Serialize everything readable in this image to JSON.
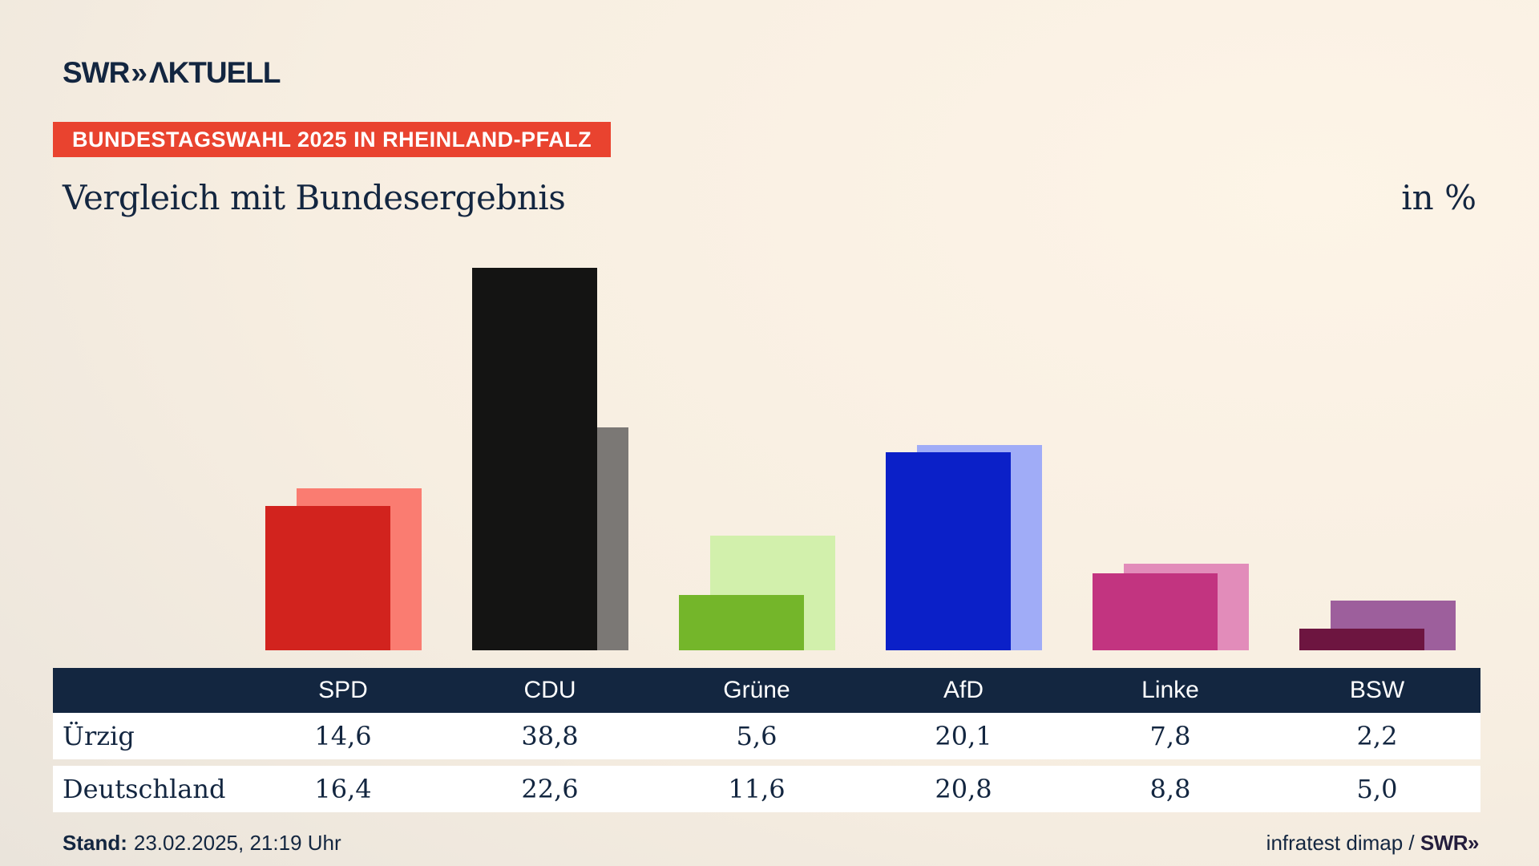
{
  "brand": {
    "logo_main": "SWR",
    "logo_chevrons": "»",
    "logo_suffix": "ΛKTUELL"
  },
  "badge": {
    "text": "BUNDESTAGSWAHL 2025 IN RHEINLAND-PFALZ",
    "bg_color": "#e9432f"
  },
  "title": "Vergleich mit Bundesergebnis",
  "unit_label": "in %",
  "chart_data": {
    "type": "bar",
    "categories": [
      "SPD",
      "CDU",
      "Grüne",
      "AfD",
      "Linke",
      "BSW"
    ],
    "series": [
      {
        "name": "Ürzig",
        "values": [
          14.6,
          38.8,
          5.6,
          20.1,
          7.8,
          2.2
        ],
        "colors": [
          "#d2231e",
          "#141413",
          "#74b62a",
          "#0b20c8",
          "#c23480",
          "#6d1540"
        ]
      },
      {
        "name": "Deutschland",
        "values": [
          16.4,
          22.6,
          11.6,
          20.8,
          8.8,
          5.0
        ],
        "colors": [
          "#fa7c71",
          "#7b7875",
          "#d2f0ac",
          "#a0acf7",
          "#e28cba",
          "#9d5f9c"
        ]
      }
    ],
    "title": "Vergleich mit Bundesergebnis",
    "xlabel": "",
    "ylabel": "in %",
    "ylim": [
      0,
      41.5
    ],
    "grid": false,
    "legend_position": "table-rows",
    "value_format": "german-decimal-comma"
  },
  "table": {
    "header": [
      "SPD",
      "CDU",
      "Grüne",
      "AfD",
      "Linke",
      "BSW"
    ],
    "rows": [
      {
        "label": "Ürzig",
        "values": [
          "14,6",
          "38,8",
          "5,6",
          "20,1",
          "7,8",
          "2,2"
        ]
      },
      {
        "label": "Deutschland",
        "values": [
          "16,4",
          "22,6",
          "11,6",
          "20,8",
          "8,8",
          "5,0"
        ]
      }
    ]
  },
  "footer": {
    "stand_label": "Stand:",
    "stand_value": "23.02.2025, 21:19 Uhr",
    "source_text": "infratest dimap / ",
    "source_brand": "SWR»"
  },
  "colors": {
    "navy": "#132640",
    "background": "#f7eee1",
    "table_header_bg": "#132640"
  }
}
